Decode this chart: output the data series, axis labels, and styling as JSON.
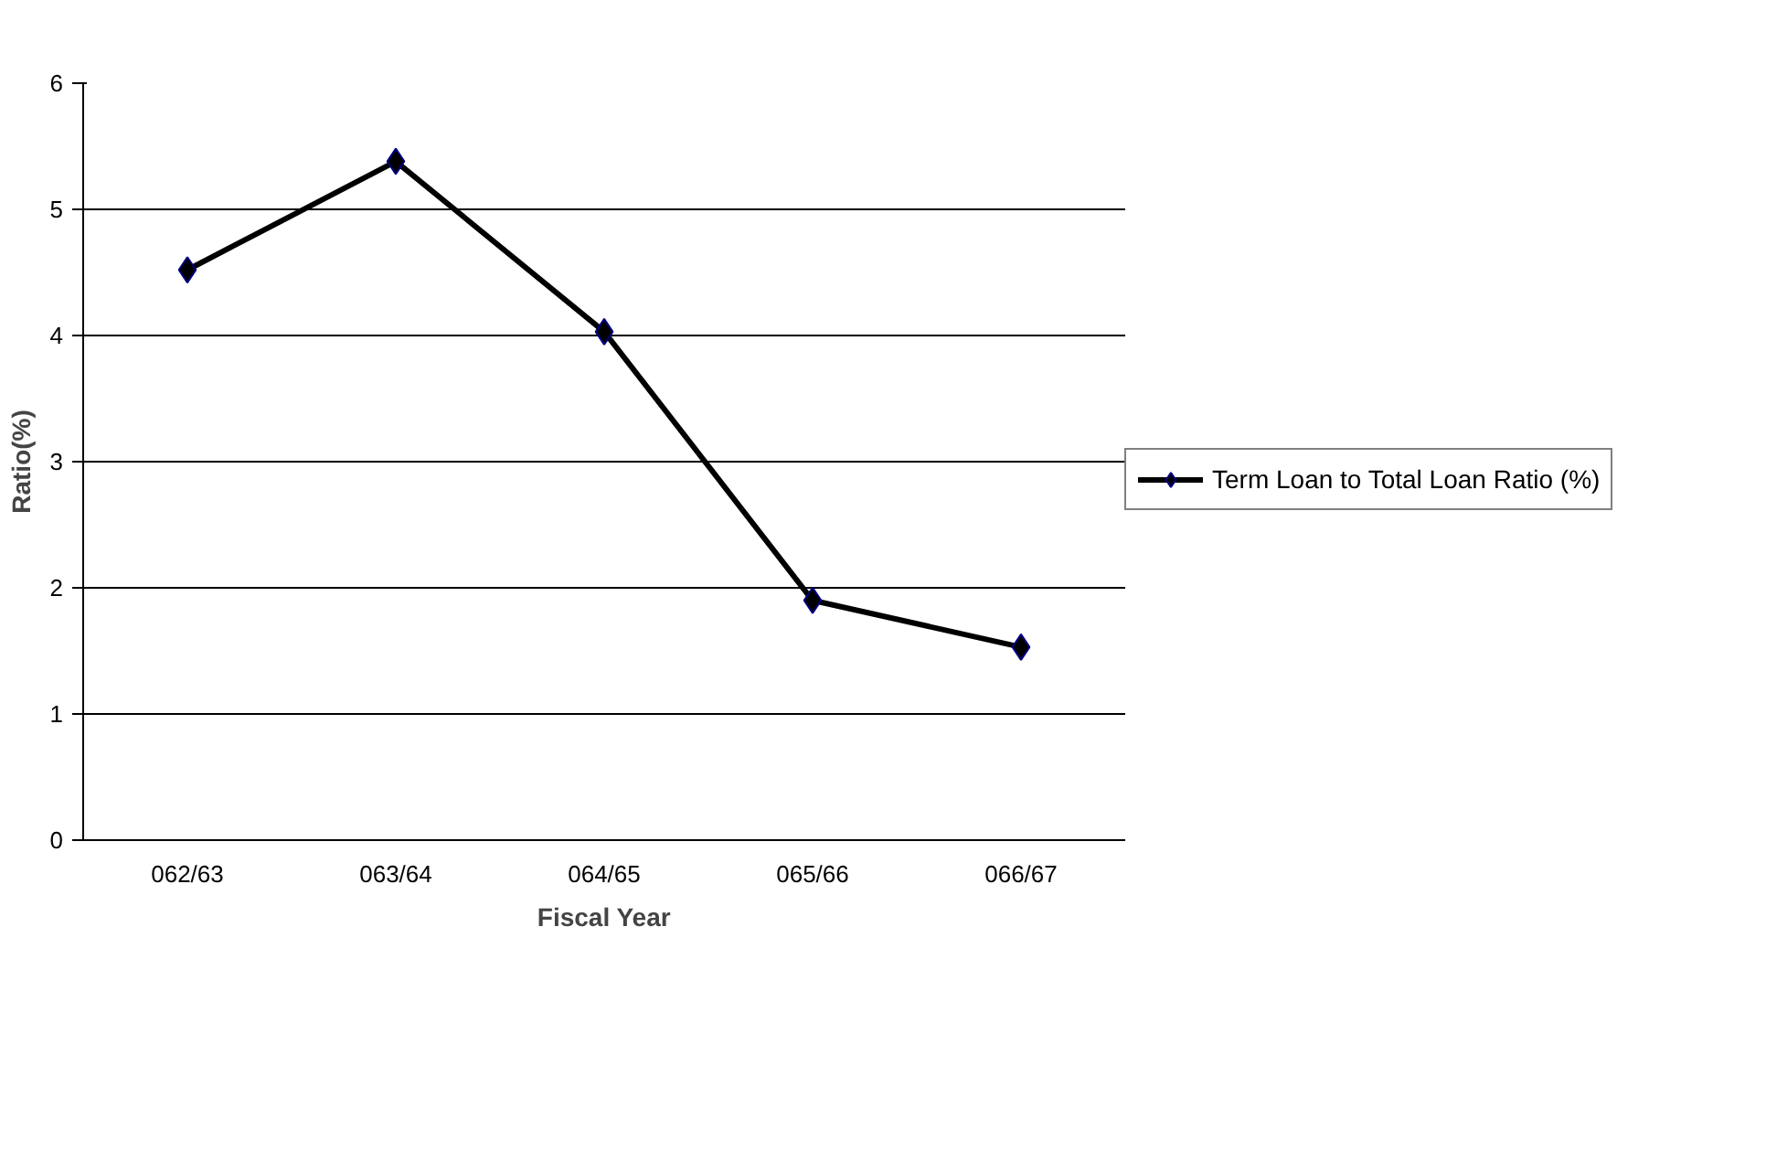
{
  "chart_data": {
    "type": "line",
    "xlabel": "Fiscal Year",
    "ylabel": "Ratio(%)",
    "categories": [
      "062/63",
      "063/64",
      "064/65",
      "065/66",
      "066/67"
    ],
    "series": [
      {
        "name": "Term Loan to Total Loan Ratio (%)",
        "color": "#000000",
        "values": [
          4.52,
          5.38,
          4.03,
          1.9,
          1.53
        ]
      }
    ],
    "ylim": [
      0,
      6
    ],
    "yticks": [
      0,
      1,
      2,
      3,
      4,
      5,
      6
    ],
    "grid": "y",
    "legend": "right",
    "marker": "diamond",
    "line_style": "solid"
  }
}
